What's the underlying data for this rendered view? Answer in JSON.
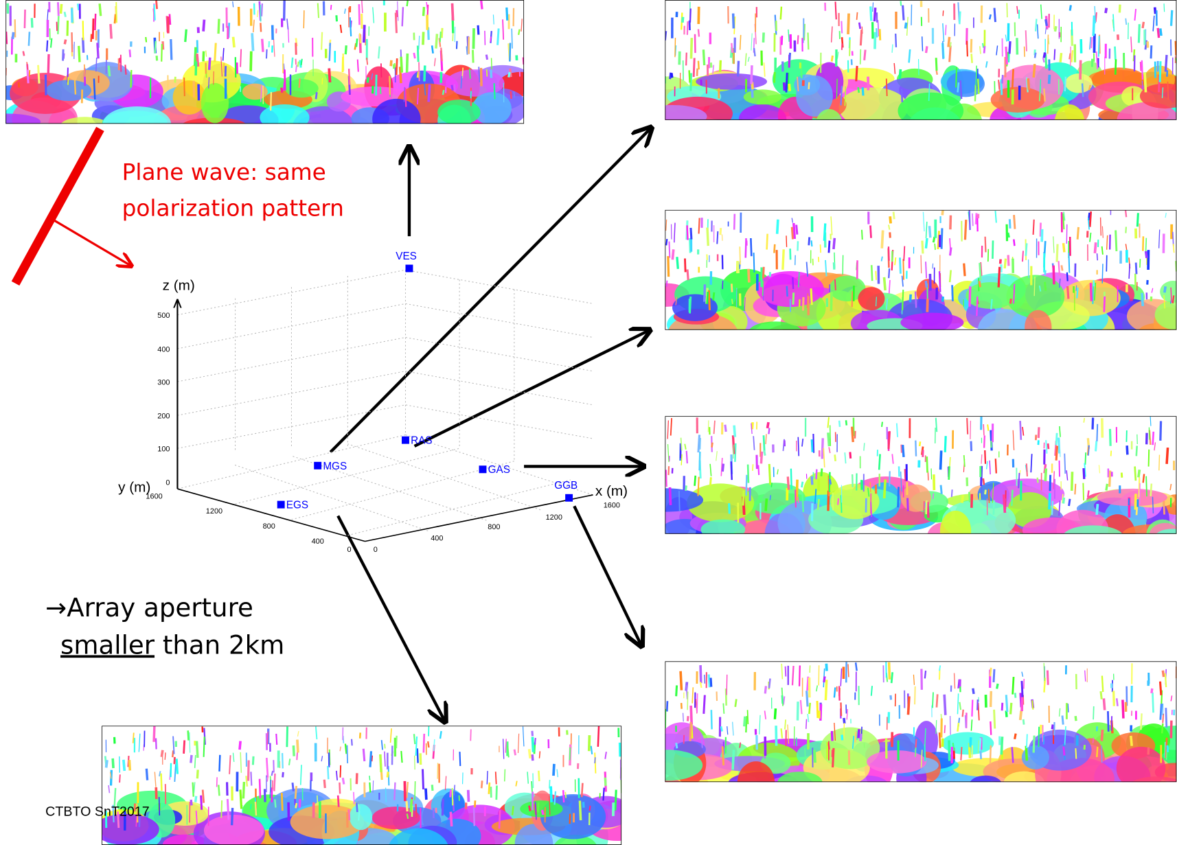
{
  "annotation": {
    "line1": "Plane wave: same",
    "line2": "polarization pattern"
  },
  "note": {
    "line1": "→Array aperture",
    "line2_underlined": "smaller",
    "line2_rest": "than 2km"
  },
  "plot": {
    "z_label": "z (m)",
    "y_label": "y (m)",
    "x_label": "x (m)",
    "z_ticks": [
      "500",
      "400",
      "300",
      "200",
      "100",
      "0"
    ],
    "y_ticks": [
      "1600",
      "1200",
      "800",
      "400",
      "0"
    ],
    "x_ticks": [
      "0",
      "400",
      "800",
      "1200",
      "1600"
    ],
    "stations": [
      {
        "label": "VES"
      },
      {
        "label": "RAS"
      },
      {
        "label": "MGS"
      },
      {
        "label": "GAS"
      },
      {
        "label": "GGB"
      },
      {
        "label": "EGS"
      }
    ]
  },
  "footer": "CTBTO SnT2017"
}
